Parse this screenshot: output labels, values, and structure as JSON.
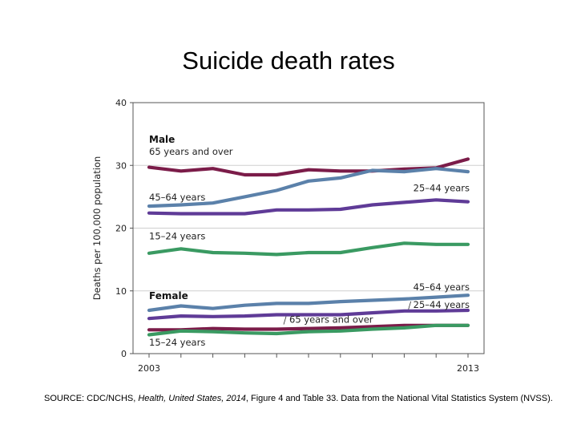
{
  "title": "Suicide death rates",
  "source": {
    "prefix": "SOURCE: CDC/NCHS, ",
    "pub": "Health, United States, 2014",
    "suffix": ", Figure 4 and Table 33. Data from the National Vital Statistics System (NVSS)."
  },
  "chart_data": {
    "type": "line",
    "ylabel": "Deaths per 100,000 population",
    "xlim": [
      2003,
      2013
    ],
    "ylim": [
      0,
      40
    ],
    "yticks": [
      0,
      10,
      20,
      30,
      40
    ],
    "xtick_labels": [
      2003,
      2013
    ],
    "x": [
      2003,
      2004,
      2005,
      2006,
      2007,
      2008,
      2009,
      2010,
      2011,
      2012,
      2013
    ],
    "grid": "horizontal",
    "group_labels": [
      {
        "text": "Male",
        "y": 33.6
      },
      {
        "text": "Female",
        "y": 8.7
      }
    ],
    "series": [
      {
        "name": "65 years and over",
        "group": "Male",
        "color": "#7b1c49",
        "values": [
          29.7,
          29.1,
          29.5,
          28.5,
          28.5,
          29.3,
          29.1,
          29.1,
          29.4,
          29.6,
          31.0
        ],
        "label_y": 31.7
      },
      {
        "name": "45–64 years",
        "group": "Male",
        "color": "#5b81aa",
        "values": [
          23.5,
          23.7,
          24.0,
          25.0,
          26.0,
          27.5,
          28.0,
          29.2,
          29.0,
          29.5,
          29.0
        ],
        "label_y": 24.4
      },
      {
        "name": "25–44 years",
        "group": "Male",
        "color": "#5f3b97",
        "values": [
          22.4,
          22.3,
          22.3,
          22.3,
          22.9,
          22.9,
          23.0,
          23.7,
          24.1,
          24.5,
          24.2
        ],
        "label_y": 25.9
      },
      {
        "name": "15–24 years",
        "group": "Male",
        "color": "#3a9a62",
        "values": [
          16.0,
          16.7,
          16.1,
          16.0,
          15.8,
          16.1,
          16.1,
          16.9,
          17.6,
          17.4,
          17.4
        ],
        "label_y": 18.2
      },
      {
        "name": "45–64 years",
        "group": "Female",
        "color": "#5b81aa",
        "values": [
          6.9,
          7.6,
          7.2,
          7.7,
          8.0,
          8.0,
          8.3,
          8.5,
          8.7,
          9.0,
          9.3
        ],
        "label_y": 10.1
      },
      {
        "name": "25–44 years",
        "group": "Female",
        "color": "#5f3b97",
        "values": [
          5.6,
          6.0,
          5.9,
          6.0,
          6.2,
          6.2,
          6.2,
          6.5,
          6.8,
          6.8,
          6.9
        ],
        "label_y": 7.3
      },
      {
        "name": "65 years and over",
        "group": "Female",
        "color": "#7b1c49",
        "values": [
          3.8,
          3.8,
          4.0,
          3.9,
          3.9,
          4.0,
          4.1,
          4.3,
          4.5,
          4.5,
          4.5
        ],
        "label_y": 4.9
      },
      {
        "name": "15–24 years",
        "group": "Female",
        "color": "#3a9a62",
        "values": [
          3.0,
          3.6,
          3.5,
          3.3,
          3.2,
          3.5,
          3.6,
          3.9,
          4.1,
          4.5,
          4.5
        ],
        "label_y": 1.3
      }
    ]
  }
}
